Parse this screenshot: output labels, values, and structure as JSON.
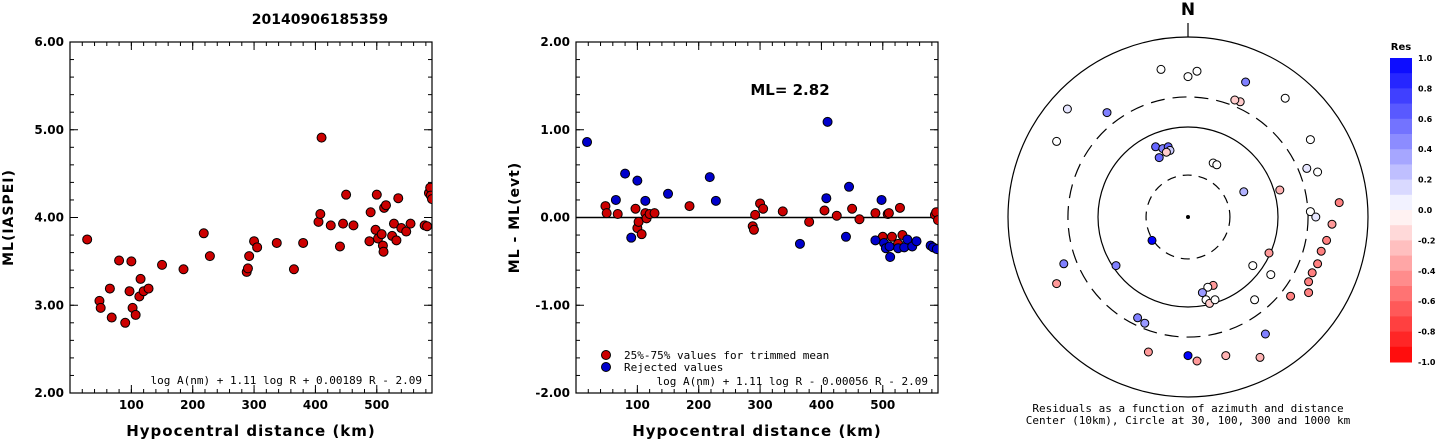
{
  "title": "20140906185359",
  "chart_data": [
    {
      "type": "scatter",
      "xlabel": "Hypocentral distance (km)",
      "ylabel": "ML(IASPEI)",
      "xlim": [
        0,
        590
      ],
      "ylim": [
        2.0,
        6.0
      ],
      "xticks": [
        "100",
        "200",
        "300",
        "400",
        "500"
      ],
      "yticks": [
        "2.00",
        "3.00",
        "4.00",
        "5.00",
        "6.00"
      ],
      "annotation": "log A(nm) + 1.11 log R + 0.00189 R - 2.09",
      "series": [
        {
          "color": "#cc0000",
          "points": [
            [
              28,
              3.75
            ],
            [
              48,
              3.05
            ],
            [
              50,
              2.97
            ],
            [
              65,
              3.19
            ],
            [
              68,
              2.86
            ],
            [
              80,
              3.51
            ],
            [
              90,
              2.8
            ],
            [
              97,
              3.16
            ],
            [
              100,
              3.5
            ],
            [
              102,
              2.97
            ],
            [
              107,
              2.89
            ],
            [
              113,
              3.1
            ],
            [
              115,
              3.3
            ],
            [
              120,
              3.16
            ],
            [
              128,
              3.19
            ],
            [
              150,
              3.46
            ],
            [
              185,
              3.41
            ],
            [
              218,
              3.82
            ],
            [
              228,
              3.56
            ],
            [
              288,
              3.38
            ],
            [
              290,
              3.42
            ],
            [
              292,
              3.56
            ],
            [
              300,
              3.73
            ],
            [
              305,
              3.66
            ],
            [
              337,
              3.71
            ],
            [
              365,
              3.41
            ],
            [
              380,
              3.71
            ],
            [
              405,
              3.95
            ],
            [
              408,
              4.04
            ],
            [
              410,
              4.91
            ],
            [
              425,
              3.91
            ],
            [
              440,
              3.67
            ],
            [
              445,
              3.93
            ],
            [
              450,
              4.26
            ],
            [
              462,
              3.91
            ],
            [
              488,
              3.73
            ],
            [
              490,
              4.06
            ],
            [
              498,
              3.86
            ],
            [
              500,
              4.26
            ],
            [
              502,
              3.76
            ],
            [
              508,
              3.81
            ],
            [
              510,
              3.68
            ],
            [
              511,
              3.61
            ],
            [
              512,
              4.11
            ],
            [
              515,
              4.14
            ],
            [
              525,
              3.79
            ],
            [
              528,
              3.93
            ],
            [
              532,
              3.74
            ],
            [
              535,
              4.22
            ],
            [
              540,
              3.88
            ],
            [
              548,
              3.84
            ],
            [
              555,
              3.93
            ],
            [
              578,
              3.91
            ],
            [
              582,
              3.9
            ],
            [
              585,
              4.28
            ],
            [
              587,
              4.34
            ],
            [
              588,
              4.25
            ],
            [
              590,
              4.21
            ]
          ]
        }
      ]
    },
    {
      "type": "scatter",
      "xlabel": "Hypocentral distance (km)",
      "ylabel": "ML - ML(evt)",
      "xlim": [
        0,
        590
      ],
      "ylim": [
        -2.0,
        2.0
      ],
      "xticks": [
        "100",
        "200",
        "300",
        "400",
        "500"
      ],
      "yticks": [
        "-2.00",
        "-1.00",
        "0.00",
        "1.00",
        "2.00"
      ],
      "annotation": "ML= 2.82",
      "formula": "log A(nm) + 1.11 log R - 0.00056 R - 2.09",
      "series": [
        {
          "name": "25%-75% values for trimmed mean",
          "color": "#cc0000",
          "points": [
            [
              48,
              0.13
            ],
            [
              50,
              0.05
            ],
            [
              68,
              0.04
            ],
            [
              97,
              0.1
            ],
            [
              100,
              -0.12
            ],
            [
              102,
              -0.05
            ],
            [
              107,
              -0.19
            ],
            [
              113,
              0.05
            ],
            [
              115,
              -0.01
            ],
            [
              120,
              0.04
            ],
            [
              128,
              0.05
            ],
            [
              185,
              0.13
            ],
            [
              288,
              -0.1
            ],
            [
              290,
              -0.14
            ],
            [
              292,
              0.03
            ],
            [
              300,
              0.16
            ],
            [
              305,
              0.1
            ],
            [
              337,
              0.07
            ],
            [
              380,
              -0.05
            ],
            [
              405,
              0.08
            ],
            [
              425,
              0.02
            ],
            [
              450,
              0.1
            ],
            [
              462,
              -0.02
            ],
            [
              488,
              0.05
            ],
            [
              500,
              -0.22
            ],
            [
              508,
              0.04
            ],
            [
              510,
              0.05
            ],
            [
              515,
              -0.22
            ],
            [
              525,
              -0.3
            ],
            [
              528,
              0.11
            ],
            [
              532,
              -0.2
            ],
            [
              585,
              0.03
            ],
            [
              587,
              0.06
            ],
            [
              590,
              -0.03
            ]
          ]
        },
        {
          "name": "Rejected values",
          "color": "#0000cc",
          "points": [
            [
              18,
              0.86
            ],
            [
              65,
              0.2
            ],
            [
              80,
              0.5
            ],
            [
              90,
              -0.23
            ],
            [
              100,
              0.42
            ],
            [
              113,
              0.19
            ],
            [
              150,
              0.27
            ],
            [
              218,
              0.46
            ],
            [
              228,
              0.19
            ],
            [
              365,
              -0.3
            ],
            [
              408,
              0.22
            ],
            [
              410,
              1.09
            ],
            [
              440,
              -0.22
            ],
            [
              445,
              0.35
            ],
            [
              488,
              -0.26
            ],
            [
              498,
              0.2
            ],
            [
              502,
              -0.29
            ],
            [
              505,
              -0.35
            ],
            [
              511,
              -0.33
            ],
            [
              512,
              -0.45
            ],
            [
              525,
              -0.35
            ],
            [
              535,
              -0.34
            ],
            [
              540,
              -0.25
            ],
            [
              548,
              -0.33
            ],
            [
              555,
              -0.27
            ],
            [
              578,
              -0.32
            ],
            [
              582,
              -0.34
            ],
            [
              588,
              -0.36
            ]
          ]
        }
      ]
    },
    {
      "type": "polar",
      "north_label": "N",
      "caption_line1": "Residuals as a function of azimuth and distance",
      "caption_line2": "Center (10km), Circle at 30, 100, 300 and 1000 km",
      "colorbar": {
        "title": "Res",
        "ticks": [
          "1.0",
          "0.8",
          "0.6",
          "0.4",
          "0.2",
          "0.0",
          "-0.2",
          "-0.4",
          "-0.6",
          "-0.8",
          "-1.0"
        ],
        "range": [
          -1.0,
          1.0
        ]
      },
      "stations": [
        {
          "dx": 0.0,
          "dy": 0.78,
          "res": 0.0
        },
        {
          "dx": -0.15,
          "dy": 0.82,
          "res": 0.0
        },
        {
          "dx": 0.05,
          "dy": 0.81,
          "res": 0.0
        },
        {
          "dx": 0.32,
          "dy": 0.75,
          "res": 0.5
        },
        {
          "dx": 0.54,
          "dy": 0.66,
          "res": 0.0
        },
        {
          "dx": 0.68,
          "dy": 0.43,
          "res": 0.0
        },
        {
          "dx": 0.72,
          "dy": 0.25,
          "res": 0.0
        },
        {
          "dx": 0.66,
          "dy": 0.27,
          "res": 0.1
        },
        {
          "dx": 0.29,
          "dy": 0.64,
          "res": -0.2
        },
        {
          "dx": 0.26,
          "dy": 0.65,
          "res": -0.2
        },
        {
          "dx": -0.45,
          "dy": 0.58,
          "res": 0.5
        },
        {
          "dx": -0.67,
          "dy": 0.6,
          "res": 0.1
        },
        {
          "dx": -0.73,
          "dy": 0.42,
          "res": 0.0
        },
        {
          "dx": -0.18,
          "dy": 0.39,
          "res": 0.6
        },
        {
          "dx": -0.14,
          "dy": 0.38,
          "res": 0.5
        },
        {
          "dx": -0.11,
          "dy": 0.39,
          "res": 0.6
        },
        {
          "dx": -0.1,
          "dy": 0.37,
          "res": 0.2
        },
        {
          "dx": -0.16,
          "dy": 0.33,
          "res": 0.6
        },
        {
          "dx": -0.12,
          "dy": 0.36,
          "res": -0.2
        },
        {
          "dx": 0.14,
          "dy": 0.3,
          "res": 0.0
        },
        {
          "dx": 0.16,
          "dy": 0.29,
          "res": 0.0
        },
        {
          "dx": 0.31,
          "dy": 0.14,
          "res": 0.3
        },
        {
          "dx": 0.51,
          "dy": 0.15,
          "res": -0.3
        },
        {
          "dx": 0.84,
          "dy": 0.08,
          "res": -0.5
        },
        {
          "dx": 0.68,
          "dy": 0.03,
          "res": 0.0
        },
        {
          "dx": 0.71,
          "dy": 0.0,
          "res": 0.1
        },
        {
          "dx": 0.8,
          "dy": -0.04,
          "res": -0.4
        },
        {
          "dx": 0.77,
          "dy": -0.13,
          "res": -0.5
        },
        {
          "dx": 0.74,
          "dy": -0.19,
          "res": -0.5
        },
        {
          "dx": 0.72,
          "dy": -0.26,
          "res": -0.5
        },
        {
          "dx": 0.69,
          "dy": -0.31,
          "res": -0.5
        },
        {
          "dx": 0.67,
          "dy": -0.36,
          "res": -0.5
        },
        {
          "dx": 0.67,
          "dy": -0.42,
          "res": -0.5
        },
        {
          "dx": 0.57,
          "dy": -0.44,
          "res": -0.5
        },
        {
          "dx": 0.37,
          "dy": -0.46,
          "res": 0.0
        },
        {
          "dx": 0.45,
          "dy": -0.2,
          "res": -0.4
        },
        {
          "dx": 0.46,
          "dy": -0.32,
          "res": 0.0
        },
        {
          "dx": 0.36,
          "dy": -0.27,
          "res": 0.0
        },
        {
          "dx": 0.14,
          "dy": -0.38,
          "res": -0.4
        },
        {
          "dx": 0.11,
          "dy": -0.39,
          "res": 0.0
        },
        {
          "dx": 0.08,
          "dy": -0.42,
          "res": 0.4
        },
        {
          "dx": 0.1,
          "dy": -0.46,
          "res": 0.0
        },
        {
          "dx": 0.12,
          "dy": -0.48,
          "res": -0.2
        },
        {
          "dx": 0.15,
          "dy": -0.46,
          "res": 0.0
        },
        {
          "dx": -0.4,
          "dy": -0.27,
          "res": 0.5
        },
        {
          "dx": -0.69,
          "dy": -0.26,
          "res": 0.5
        },
        {
          "dx": -0.73,
          "dy": -0.37,
          "res": -0.4
        },
        {
          "dx": -0.28,
          "dy": -0.56,
          "res": 0.5
        },
        {
          "dx": -0.24,
          "dy": -0.59,
          "res": 0.4
        },
        {
          "dx": -0.22,
          "dy": -0.75,
          "res": -0.4
        },
        {
          "dx": 0.0,
          "dy": -0.77,
          "res": 1.0
        },
        {
          "dx": 0.05,
          "dy": -0.8,
          "res": -0.4
        },
        {
          "dx": 0.21,
          "dy": -0.77,
          "res": -0.3
        },
        {
          "dx": 0.4,
          "dy": -0.78,
          "res": -0.3
        },
        {
          "dx": 0.43,
          "dy": -0.65,
          "res": 0.5
        },
        {
          "dx": -0.2,
          "dy": -0.13,
          "res": 1.0
        }
      ]
    }
  ]
}
